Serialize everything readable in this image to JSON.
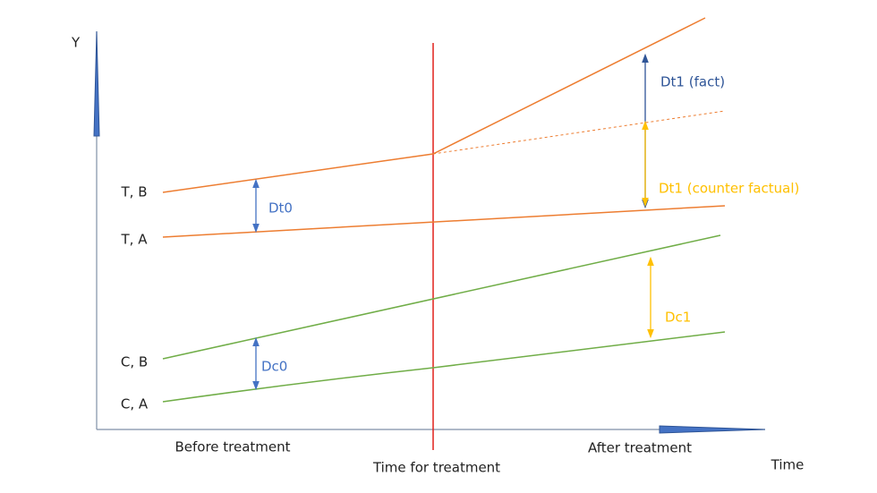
{
  "axes": {
    "y_label": "Y",
    "x_label": "Time"
  },
  "lines": {
    "treated_before": "T, B",
    "treated_after": "T, A",
    "control_before": "C, B",
    "control_after": "C, A"
  },
  "differences": {
    "dt0": "Dt0",
    "dc0": "Dc0",
    "dt1_fact": "Dt1 (fact)",
    "dt1_counter": "Dt1 (counter factual)",
    "dc1": "Dc1"
  },
  "periods": {
    "before": "Before treatment",
    "treatment": "Time for treatment",
    "after": "After treatment"
  }
}
